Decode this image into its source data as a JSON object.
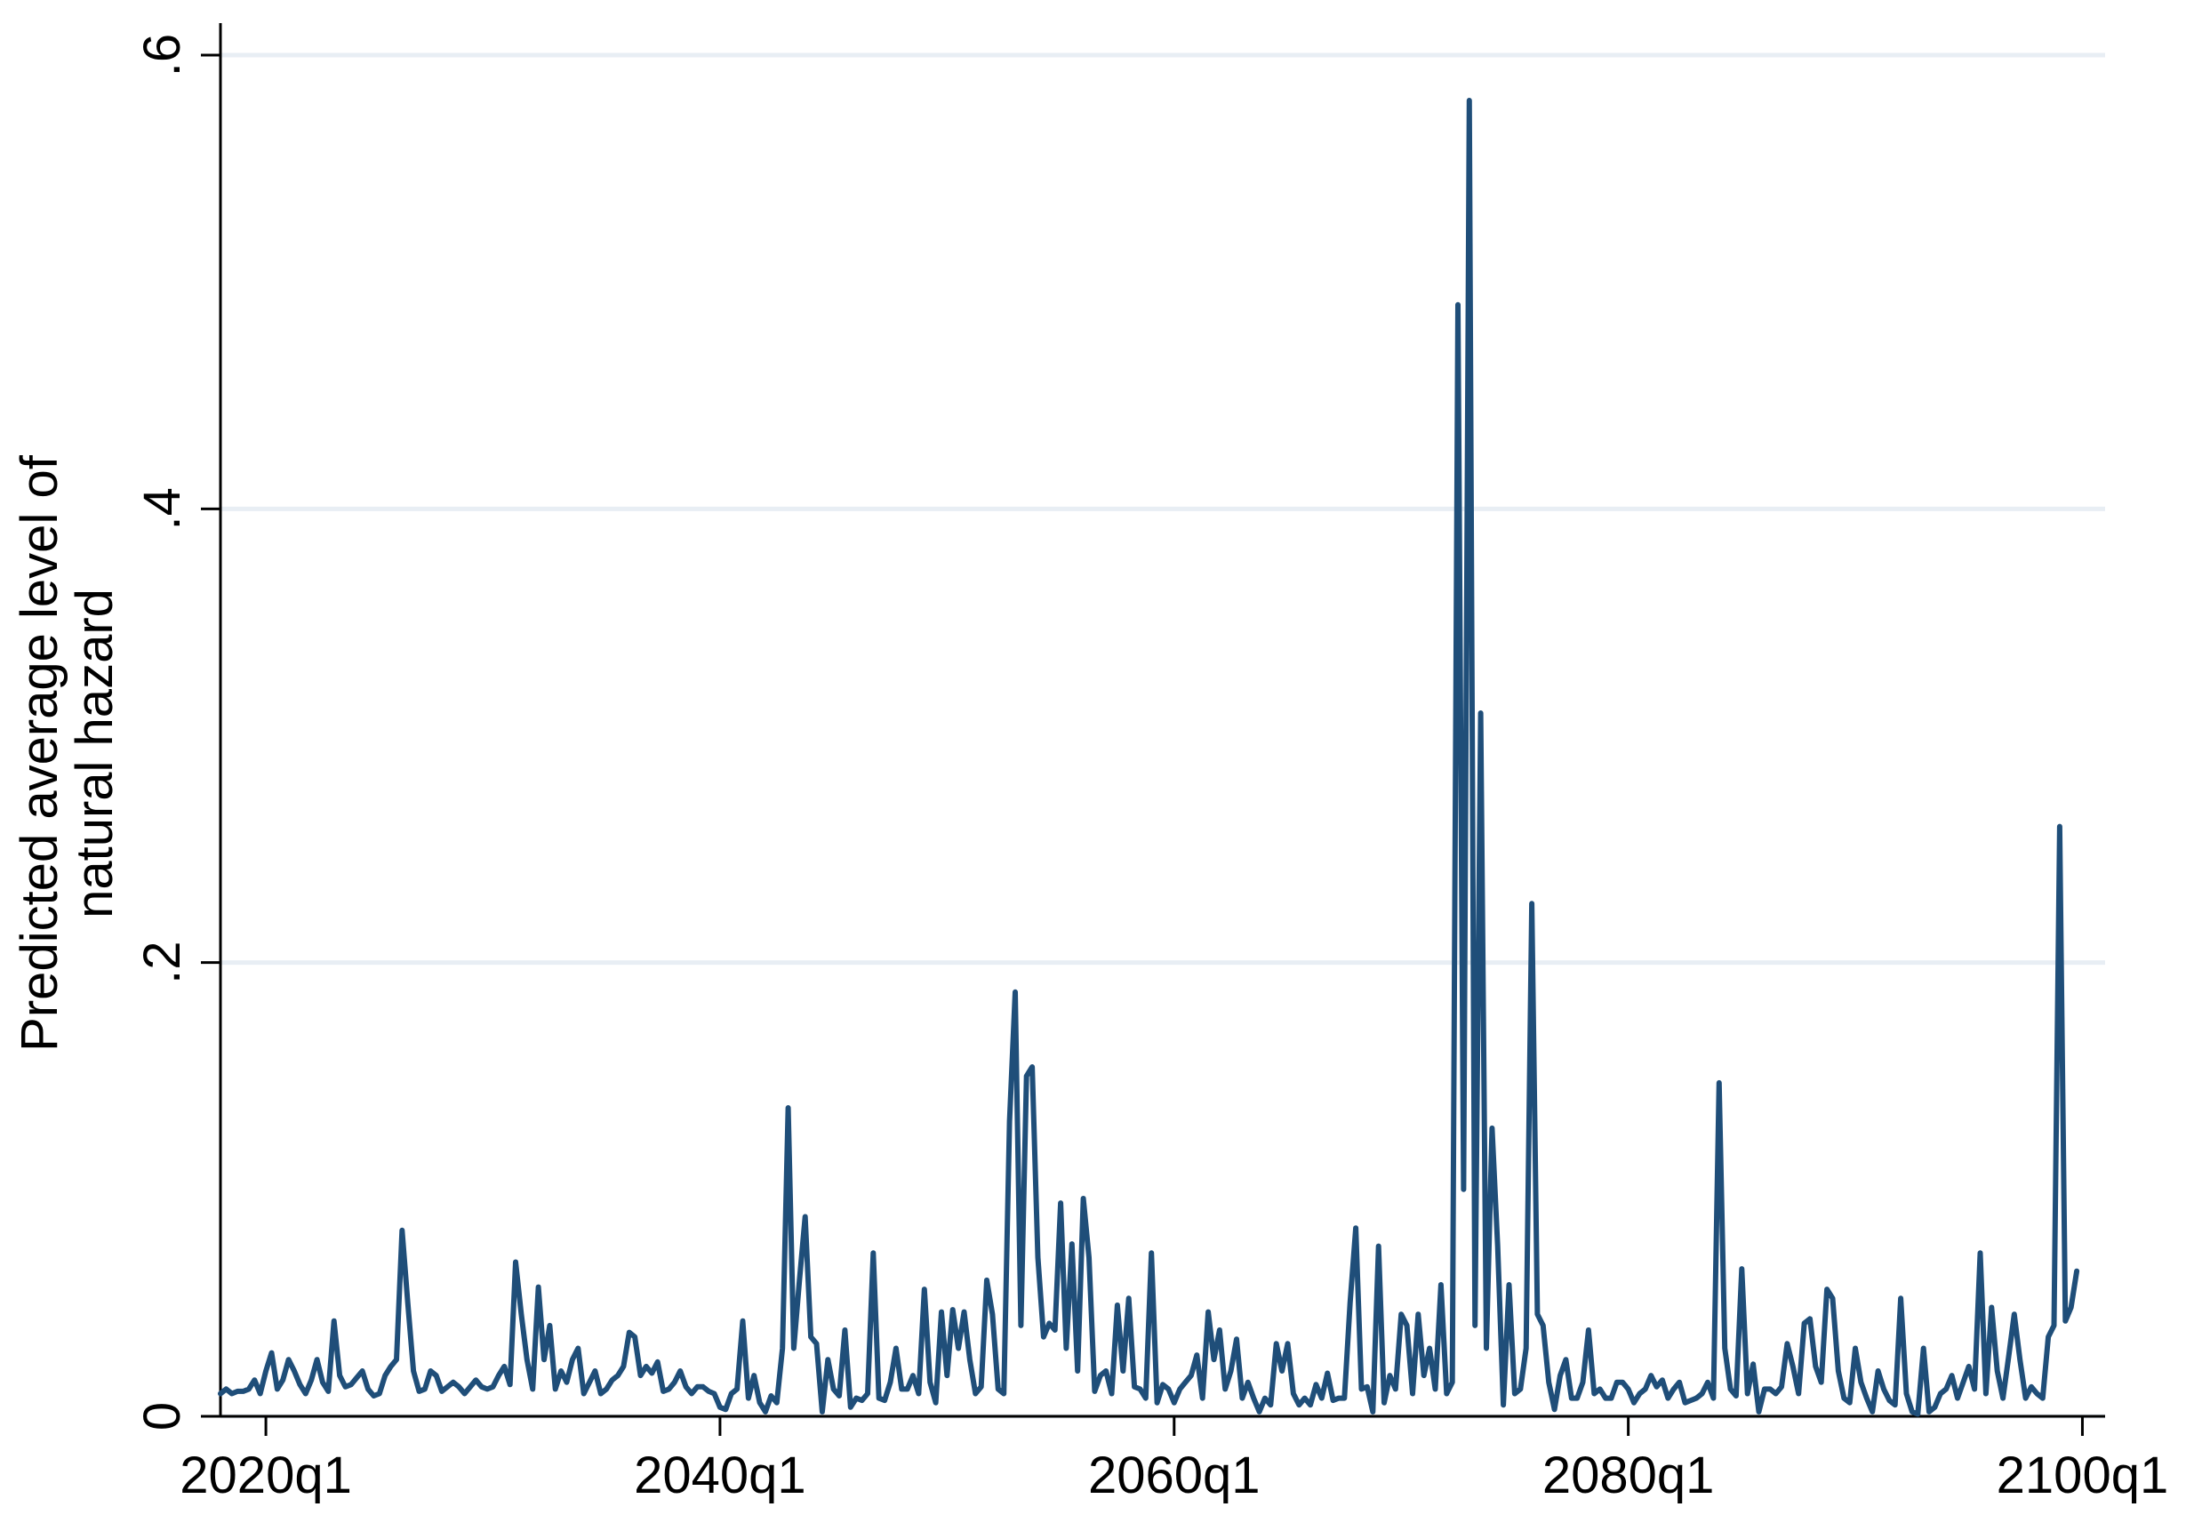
{
  "chart_data": {
    "type": "line",
    "title": "",
    "xlabel": "",
    "ylabel": "Predicted average level of natural hazard",
    "ylabel_lines": [
      "Predicted average level of",
      "natural hazard"
    ],
    "xlim": [
      2018.0,
      2101.0
    ],
    "ylim": [
      0,
      0.6
    ],
    "grid": "horizontal",
    "legend": "none",
    "x_ticks": [
      {
        "value": 2020.0,
        "label": "2020q1"
      },
      {
        "value": 2040.0,
        "label": "2040q1"
      },
      {
        "value": 2060.0,
        "label": "2060q1"
      },
      {
        "value": 2080.0,
        "label": "2080q1"
      },
      {
        "value": 2100.0,
        "label": "2100q1"
      }
    ],
    "y_ticks": [
      {
        "value": 0,
        "label": "0"
      },
      {
        "value": 0.2,
        "label": ".2"
      },
      {
        "value": 0.4,
        "label": ".4"
      },
      {
        "value": 0.6,
        "label": ".6"
      }
    ],
    "colors": {
      "line": "#1f4e79",
      "grid": "#e8eef4",
      "axis": "#000000"
    },
    "series": [
      {
        "x": [
          2018.0,
          2018.25,
          2018.5,
          2018.75,
          2019.0,
          2019.25,
          2019.5,
          2019.75,
          2020.0,
          2020.25,
          2020.5,
          2020.75,
          2021.0,
          2021.25,
          2021.5,
          2021.75,
          2022.0,
          2022.25,
          2022.5,
          2022.75,
          2023.0,
          2023.25,
          2023.5,
          2023.75,
          2024.0,
          2024.25,
          2024.5,
          2024.75,
          2025.0,
          2025.25,
          2025.5,
          2025.75,
          2026.0,
          2026.25,
          2026.5,
          2026.75,
          2027.0,
          2027.25,
          2027.5,
          2027.75,
          2028.0,
          2028.25,
          2028.5,
          2028.75,
          2029.0,
          2029.25,
          2029.5,
          2029.75,
          2030.0,
          2030.25,
          2030.5,
          2030.75,
          2031.0,
          2031.25,
          2031.5,
          2031.75,
          2032.0,
          2032.25,
          2032.5,
          2032.75,
          2033.0,
          2033.25,
          2033.5,
          2033.75,
          2034.0,
          2034.25,
          2034.5,
          2034.75,
          2035.0,
          2035.25,
          2035.5,
          2035.75,
          2036.0,
          2036.25,
          2036.5,
          2036.75,
          2037.0,
          2037.25,
          2037.5,
          2037.75,
          2038.0,
          2038.25,
          2038.5,
          2038.75,
          2039.0,
          2039.25,
          2039.5,
          2039.75,
          2040.0,
          2040.25,
          2040.5,
          2040.75,
          2041.0,
          2041.25,
          2041.5,
          2041.75,
          2042.0,
          2042.25,
          2042.5,
          2042.75,
          2043.0,
          2043.25,
          2043.5,
          2043.75,
          2044.0,
          2044.25,
          2044.5,
          2044.75,
          2045.0,
          2045.25,
          2045.5,
          2045.75,
          2046.0,
          2046.25,
          2046.5,
          2046.75,
          2047.0,
          2047.25,
          2047.5,
          2047.75,
          2048.0,
          2048.25,
          2048.5,
          2048.75,
          2049.0,
          2049.25,
          2049.5,
          2049.75,
          2050.0,
          2050.25,
          2050.5,
          2050.75,
          2051.0,
          2051.25,
          2051.5,
          2051.75,
          2052.0,
          2052.25,
          2052.5,
          2052.75,
          2053.0,
          2053.25,
          2053.5,
          2053.75,
          2054.0,
          2054.25,
          2054.5,
          2054.75,
          2055.0,
          2055.25,
          2055.5,
          2055.75,
          2056.0,
          2056.25,
          2056.5,
          2056.75,
          2057.0,
          2057.25,
          2057.5,
          2057.75,
          2058.0,
          2058.25,
          2058.5,
          2058.75,
          2059.0,
          2059.25,
          2059.5,
          2059.75,
          2060.0,
          2060.25,
          2060.5,
          2060.75,
          2061.0,
          2061.25,
          2061.5,
          2061.75,
          2062.0,
          2062.25,
          2062.5,
          2062.75,
          2063.0,
          2063.25,
          2063.5,
          2063.75,
          2064.0,
          2064.25,
          2064.5,
          2064.75,
          2065.0,
          2065.25,
          2065.5,
          2065.75,
          2066.0,
          2066.25,
          2066.5,
          2066.75,
          2067.0,
          2067.25,
          2067.5,
          2067.75,
          2068.0,
          2068.25,
          2068.5,
          2068.75,
          2069.0,
          2069.25,
          2069.5,
          2069.75,
          2070.0,
          2070.25,
          2070.5,
          2070.75,
          2071.0,
          2071.25,
          2071.5,
          2071.75,
          2072.0,
          2072.25,
          2072.5,
          2072.75,
          2073.0,
          2073.25,
          2073.5,
          2073.75,
          2074.0,
          2074.25,
          2074.5,
          2074.75,
          2075.0,
          2075.25,
          2075.5,
          2075.75,
          2076.0,
          2076.25,
          2076.5,
          2076.75,
          2077.0,
          2077.25,
          2077.5,
          2077.75,
          2078.0,
          2078.25,
          2078.5,
          2078.75,
          2079.0,
          2079.25,
          2079.5,
          2079.75,
          2080.0,
          2080.25,
          2080.5,
          2080.75,
          2081.0,
          2081.25,
          2081.5,
          2081.75,
          2082.0,
          2082.25,
          2082.5,
          2082.75,
          2083.0,
          2083.25,
          2083.5,
          2083.75,
          2084.0,
          2084.25,
          2084.5,
          2084.75,
          2085.0,
          2085.25,
          2085.5,
          2085.75,
          2086.0,
          2086.25,
          2086.5,
          2086.75,
          2087.0,
          2087.25,
          2087.5,
          2087.75,
          2088.0,
          2088.25,
          2088.5,
          2088.75,
          2089.0,
          2089.25,
          2089.5,
          2089.75,
          2090.0,
          2090.25,
          2090.5,
          2090.75,
          2091.0,
          2091.25,
          2091.5,
          2091.75,
          2092.0,
          2092.25,
          2092.5,
          2092.75,
          2093.0,
          2093.25,
          2093.5,
          2093.75,
          2094.0,
          2094.25,
          2094.5,
          2094.75,
          2095.0,
          2095.25,
          2095.5,
          2095.75,
          2096.0,
          2096.25,
          2096.5,
          2096.75,
          2097.0,
          2097.25,
          2097.5,
          2097.75,
          2098.0,
          2098.25,
          2098.5,
          2098.75,
          2099.0,
          2099.25,
          2099.5,
          2099.75
        ],
        "values": [
          0.01,
          0.012,
          0.01,
          0.011,
          0.011,
          0.012,
          0.016,
          0.01,
          0.02,
          0.028,
          0.012,
          0.016,
          0.025,
          0.02,
          0.014,
          0.01,
          0.016,
          0.025,
          0.015,
          0.011,
          0.042,
          0.018,
          0.013,
          0.014,
          0.017,
          0.02,
          0.012,
          0.009,
          0.01,
          0.018,
          0.022,
          0.025,
          0.082,
          0.05,
          0.02,
          0.011,
          0.012,
          0.02,
          0.018,
          0.011,
          0.013,
          0.015,
          0.013,
          0.01,
          0.013,
          0.016,
          0.013,
          0.012,
          0.013,
          0.018,
          0.022,
          0.014,
          0.068,
          0.045,
          0.025,
          0.012,
          0.057,
          0.025,
          0.04,
          0.012,
          0.02,
          0.015,
          0.025,
          0.03,
          0.01,
          0.015,
          0.02,
          0.01,
          0.012,
          0.016,
          0.018,
          0.022,
          0.037,
          0.035,
          0.018,
          0.022,
          0.019,
          0.024,
          0.011,
          0.012,
          0.015,
          0.02,
          0.013,
          0.01,
          0.013,
          0.013,
          0.011,
          0.01,
          0.004,
          0.003,
          0.01,
          0.012,
          0.042,
          0.008,
          0.018,
          0.006,
          0.002,
          0.009,
          0.006,
          0.03,
          0.136,
          0.03,
          0.06,
          0.088,
          0.035,
          0.032,
          0.002,
          0.025,
          0.012,
          0.009,
          0.038,
          0.004,
          0.008,
          0.007,
          0.01,
          0.072,
          0.008,
          0.007,
          0.015,
          0.03,
          0.012,
          0.012,
          0.018,
          0.01,
          0.056,
          0.015,
          0.006,
          0.046,
          0.018,
          0.047,
          0.03,
          0.046,
          0.025,
          0.01,
          0.013,
          0.06,
          0.045,
          0.012,
          0.01,
          0.13,
          0.187,
          0.04,
          0.15,
          0.154,
          0.07,
          0.035,
          0.041,
          0.038,
          0.094,
          0.03,
          0.076,
          0.02,
          0.096,
          0.07,
          0.011,
          0.018,
          0.02,
          0.01,
          0.049,
          0.02,
          0.052,
          0.013,
          0.012,
          0.008,
          0.072,
          0.006,
          0.014,
          0.012,
          0.006,
          0.012,
          0.015,
          0.018,
          0.027,
          0.008,
          0.046,
          0.025,
          0.038,
          0.012,
          0.02,
          0.034,
          0.008,
          0.015,
          0.008,
          0.002,
          0.008,
          0.005,
          0.032,
          0.02,
          0.032,
          0.01,
          0.005,
          0.008,
          0.005,
          0.014,
          0.008,
          0.019,
          0.007,
          0.008,
          0.008,
          0.05,
          0.083,
          0.012,
          0.013,
          0.002,
          0.075,
          0.006,
          0.018,
          0.012,
          0.045,
          0.04,
          0.01,
          0.045,
          0.018,
          0.03,
          0.012,
          0.058,
          0.01,
          0.015,
          0.49,
          0.1,
          0.58,
          0.04,
          0.31,
          0.03,
          0.127,
          0.075,
          0.005,
          0.058,
          0.01,
          0.012,
          0.03,
          0.226,
          0.045,
          0.04,
          0.015,
          0.003,
          0.018,
          0.025,
          0.008,
          0.008,
          0.015,
          0.038,
          0.01,
          0.012,
          0.008,
          0.008,
          0.015,
          0.015,
          0.012,
          0.006,
          0.01,
          0.012,
          0.018,
          0.013,
          0.016,
          0.008,
          0.012,
          0.015,
          0.006,
          0.007,
          0.008,
          0.01,
          0.015,
          0.008,
          0.147,
          0.03,
          0.012,
          0.009,
          0.065,
          0.01,
          0.023,
          0.002,
          0.012,
          0.012,
          0.01,
          0.013,
          0.032,
          0.022,
          0.01,
          0.041,
          0.043,
          0.022,
          0.015,
          0.056,
          0.052,
          0.02,
          0.008,
          0.006,
          0.03,
          0.015,
          0.008,
          0.002,
          0.02,
          0.012,
          0.007,
          0.005,
          0.052,
          0.01,
          0.002,
          0.001,
          0.03,
          0.002,
          0.004,
          0.01,
          0.012,
          0.018,
          0.008,
          0.015,
          0.022,
          0.012,
          0.072,
          0.01,
          0.048,
          0.02,
          0.008,
          0.026,
          0.045,
          0.025,
          0.008,
          0.013,
          0.01,
          0.008,
          0.035,
          0.04,
          0.26,
          0.042,
          0.048,
          0.064
        ]
      }
    ]
  }
}
